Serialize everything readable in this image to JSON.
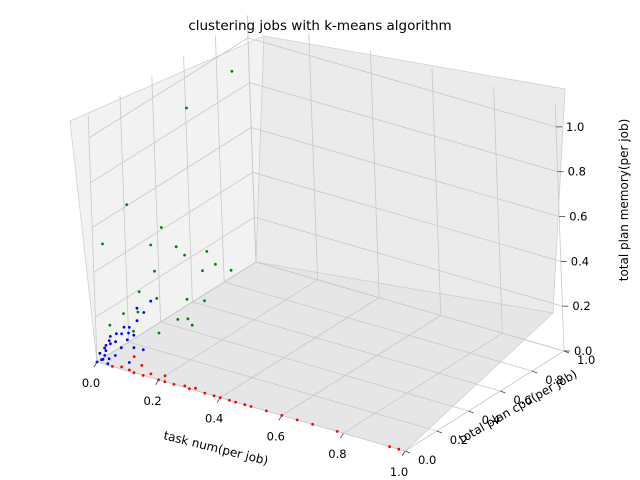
{
  "chart_data": {
    "type": "scatter",
    "title": "clustering jobs with k-means algorithm",
    "xlabel": "task num(per job)",
    "ylabel": "total plan cpu(per job)",
    "zlabel": "total plan memory(per job)",
    "xlim": [
      0,
      1
    ],
    "ylim": [
      0,
      1
    ],
    "zlim": [
      0,
      1
    ],
    "x_ticks": [
      "0.0",
      "0.2",
      "0.4",
      "0.6",
      "0.8",
      "1.0"
    ],
    "y_ticks": [
      "0.0",
      "0.2",
      "0.4",
      "0.6",
      "0.8",
      "1.0"
    ],
    "z_ticks": [
      "0.0",
      "0.2",
      "0.4",
      "0.6",
      "0.8",
      "1.0"
    ],
    "grid": true,
    "series": [
      {
        "color": "#ff0000",
        "points": [
          [
            0.05,
            0.0,
            0.0
          ],
          [
            0.08,
            0.0,
            0.01
          ],
          [
            0.1,
            0.01,
            0.0
          ],
          [
            0.12,
            0.0,
            0.0
          ],
          [
            0.15,
            0.0,
            0.0
          ],
          [
            0.17,
            0.01,
            0.01
          ],
          [
            0.2,
            0.0,
            0.0
          ],
          [
            0.22,
            0.0,
            0.0
          ],
          [
            0.25,
            0.0,
            0.0
          ],
          [
            0.28,
            0.01,
            0.0
          ],
          [
            0.3,
            0.0,
            0.0
          ],
          [
            0.32,
            0.0,
            0.01
          ],
          [
            0.35,
            0.0,
            0.0
          ],
          [
            0.38,
            0.0,
            0.0
          ],
          [
            0.4,
            0.0,
            0.0
          ],
          [
            0.43,
            0.0,
            0.0
          ],
          [
            0.45,
            0.0,
            0.0
          ],
          [
            0.48,
            0.0,
            0.0
          ],
          [
            0.5,
            0.0,
            0.0
          ],
          [
            0.55,
            0.0,
            0.0
          ],
          [
            0.6,
            0.0,
            0.0
          ],
          [
            0.65,
            0.0,
            0.0
          ],
          [
            0.7,
            0.0,
            0.0
          ],
          [
            0.78,
            0.0,
            0.0
          ],
          [
            0.95,
            0.0,
            0.0
          ],
          [
            0.98,
            0.0,
            0.0
          ],
          [
            0.12,
            0.05,
            0.01
          ],
          [
            0.2,
            0.04,
            0.0
          ],
          [
            0.08,
            0.08,
            0.02
          ]
        ]
      },
      {
        "color": "#0000ff",
        "points": [
          [
            0.0,
            0.0,
            0.0
          ],
          [
            0.01,
            0.01,
            0.01
          ],
          [
            0.02,
            0.0,
            0.02
          ],
          [
            0.0,
            0.02,
            0.03
          ],
          [
            0.03,
            0.01,
            0.0
          ],
          [
            0.01,
            0.03,
            0.02
          ],
          [
            0.02,
            0.02,
            0.05
          ],
          [
            0.0,
            0.05,
            0.04
          ],
          [
            0.04,
            0.0,
            0.03
          ],
          [
            0.01,
            0.04,
            0.06
          ],
          [
            0.03,
            0.03,
            0.08
          ],
          [
            0.02,
            0.05,
            0.1
          ],
          [
            0.0,
            0.08,
            0.06
          ],
          [
            0.05,
            0.02,
            0.04
          ],
          [
            0.04,
            0.05,
            0.12
          ],
          [
            0.01,
            0.1,
            0.05
          ],
          [
            0.06,
            0.04,
            0.07
          ],
          [
            0.02,
            0.12,
            0.08
          ],
          [
            0.05,
            0.08,
            0.14
          ],
          [
            0.07,
            0.06,
            0.1
          ],
          [
            0.03,
            0.15,
            0.1
          ],
          [
            0.08,
            0.08,
            0.06
          ],
          [
            0.04,
            0.18,
            0.12
          ],
          [
            0.06,
            0.12,
            0.09
          ],
          [
            0.0,
            0.2,
            0.04
          ],
          [
            0.09,
            0.03,
            0.02
          ],
          [
            0.02,
            0.22,
            0.15
          ],
          [
            0.1,
            0.1,
            0.05
          ],
          [
            0.05,
            0.25,
            0.18
          ],
          [
            0.01,
            0.28,
            0.1
          ]
        ]
      },
      {
        "color": "#008000",
        "points": [
          [
            0.05,
            0.8,
            0.96
          ],
          [
            0.03,
            0.55,
            0.9
          ],
          [
            0.02,
            0.18,
            0.63
          ],
          [
            0.0,
            0.06,
            0.5
          ],
          [
            0.03,
            0.3,
            0.4
          ],
          [
            0.04,
            0.35,
            0.46
          ],
          [
            0.06,
            0.4,
            0.36
          ],
          [
            0.05,
            0.28,
            0.3
          ],
          [
            0.04,
            0.2,
            0.24
          ],
          [
            0.07,
            0.25,
            0.2
          ],
          [
            0.06,
            0.45,
            0.3
          ],
          [
            0.08,
            0.55,
            0.28
          ],
          [
            0.09,
            0.5,
            0.22
          ],
          [
            0.06,
            0.15,
            0.18
          ],
          [
            0.1,
            0.38,
            0.15
          ],
          [
            0.08,
            0.6,
            0.2
          ],
          [
            0.11,
            0.3,
            0.1
          ],
          [
            0.07,
            0.1,
            0.12
          ],
          [
            0.12,
            0.45,
            0.12
          ],
          [
            0.1,
            0.2,
            0.08
          ],
          [
            0.02,
            0.05,
            0.15
          ],
          [
            0.13,
            0.35,
            0.06
          ],
          [
            0.12,
            0.62,
            0.18
          ],
          [
            0.09,
            0.4,
            0.05
          ],
          [
            0.05,
            0.08,
            0.2
          ]
        ]
      }
    ]
  }
}
